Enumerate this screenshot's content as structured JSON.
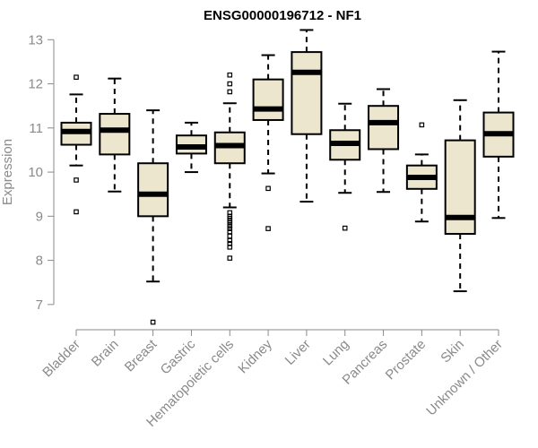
{
  "chart_data": {
    "type": "boxplot",
    "title": "ENSG00000196712 - NF1",
    "ylabel": "Expression",
    "xlabel": "",
    "ylim": [
      6.55,
      13.25
    ],
    "yticks": [
      7,
      8,
      9,
      10,
      11,
      12,
      13
    ],
    "box_color": "#EDE6CF",
    "categories": [
      "Bladder",
      "Brain",
      "Breast",
      "Gastric",
      "Hematopoietic cells",
      "Kidney",
      "Liver",
      "Lung",
      "Pancreas",
      "Prostate",
      "Skin",
      "Unknown / Other"
    ],
    "boxes": [
      {
        "name": "Bladder",
        "min": 10.15,
        "q1": 10.62,
        "median": 10.92,
        "q3": 11.12,
        "max": 11.76,
        "outliers": [
          12.15,
          9.82,
          9.1
        ]
      },
      {
        "name": "Brain",
        "min": 9.56,
        "q1": 10.4,
        "median": 10.95,
        "q3": 11.32,
        "max": 12.12,
        "outliers": []
      },
      {
        "name": "Breast",
        "min": 7.52,
        "q1": 9.0,
        "median": 9.5,
        "q3": 10.2,
        "max": 11.4,
        "outliers": [
          6.6
        ]
      },
      {
        "name": "Gastric",
        "min": 10.0,
        "q1": 10.42,
        "median": 10.57,
        "q3": 10.83,
        "max": 11.12,
        "outliers": []
      },
      {
        "name": "Hematopoietic cells",
        "min": 9.2,
        "q1": 10.2,
        "median": 10.6,
        "q3": 10.9,
        "max": 11.56,
        "outliers": [
          12.2,
          12.0,
          11.82,
          9.08,
          9.0,
          8.95,
          8.9,
          8.85,
          8.78,
          8.72,
          8.65,
          8.55,
          8.45,
          8.38,
          8.3,
          8.05
        ]
      },
      {
        "name": "Kidney",
        "min": 9.97,
        "q1": 11.18,
        "median": 11.43,
        "q3": 12.1,
        "max": 12.65,
        "outliers": [
          9.63,
          8.72
        ]
      },
      {
        "name": "Liver",
        "min": 9.33,
        "q1": 10.86,
        "median": 12.26,
        "q3": 12.72,
        "max": 13.22,
        "outliers": []
      },
      {
        "name": "Lung",
        "min": 9.53,
        "q1": 10.28,
        "median": 10.65,
        "q3": 10.95,
        "max": 11.55,
        "outliers": [
          8.73
        ]
      },
      {
        "name": "Pancreas",
        "min": 9.55,
        "q1": 10.52,
        "median": 11.12,
        "q3": 11.5,
        "max": 11.88,
        "outliers": []
      },
      {
        "name": "Prostate",
        "min": 8.88,
        "q1": 9.62,
        "median": 9.88,
        "q3": 10.15,
        "max": 10.4,
        "outliers": [
          11.07
        ]
      },
      {
        "name": "Skin",
        "min": 7.3,
        "q1": 8.6,
        "median": 8.97,
        "q3": 10.72,
        "max": 11.63,
        "outliers": []
      },
      {
        "name": "Unknown / Other",
        "min": 8.96,
        "q1": 10.35,
        "median": 10.87,
        "q3": 11.35,
        "max": 12.73,
        "outliers": []
      }
    ]
  }
}
